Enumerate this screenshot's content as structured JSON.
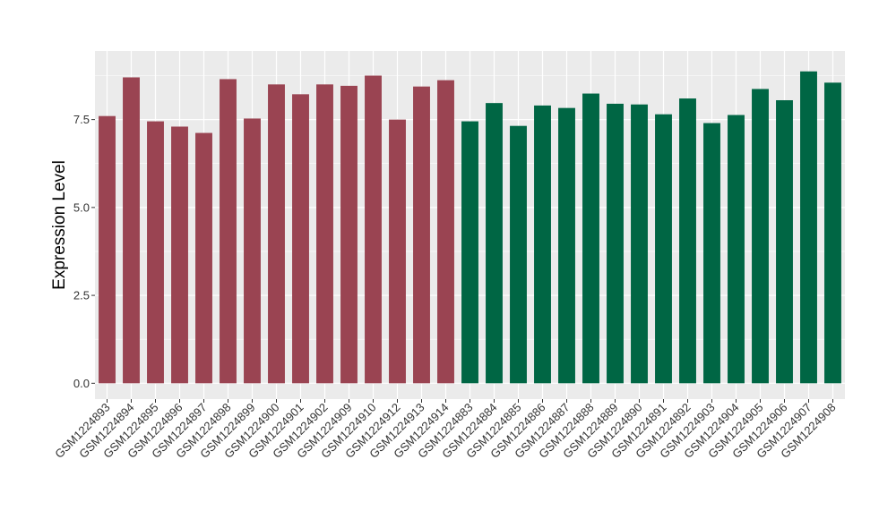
{
  "chart_data": {
    "type": "bar",
    "ylabel": "Expression Level",
    "xlabel": "",
    "ylim": [
      -0.45,
      9.45
    ],
    "yticks": [
      0.0,
      2.5,
      5.0,
      7.5
    ],
    "ytick_labels": [
      "0.0",
      "2.5",
      "5.0",
      "7.5"
    ],
    "grid": true,
    "legend": "none",
    "colors": {
      "group1": "#9a4452",
      "group2": "#006644",
      "panel": "#ebebeb",
      "grid": "#ffffff"
    },
    "categories": [
      "GSM1224893",
      "GSM1224894",
      "GSM1224895",
      "GSM1224896",
      "GSM1224897",
      "GSM1224898",
      "GSM1224899",
      "GSM1224900",
      "GSM1224901",
      "GSM1224902",
      "GSM1224909",
      "GSM1224910",
      "GSM1224912",
      "GSM1224913",
      "GSM1224914",
      "GSM1224883",
      "GSM1224884",
      "GSM1224885",
      "GSM1224886",
      "GSM1224887",
      "GSM1224888",
      "GSM1224889",
      "GSM1224890",
      "GSM1224891",
      "GSM1224892",
      "GSM1224903",
      "GSM1224904",
      "GSM1224905",
      "GSM1224906",
      "GSM1224907",
      "GSM1224908"
    ],
    "values": [
      7.6,
      8.7,
      7.45,
      7.3,
      7.12,
      8.65,
      7.53,
      8.5,
      8.22,
      8.5,
      8.46,
      8.75,
      7.5,
      8.44,
      8.62,
      7.45,
      7.97,
      7.32,
      7.9,
      7.83,
      8.24,
      7.95,
      7.93,
      7.65,
      8.1,
      7.4,
      7.63,
      8.37,
      8.05,
      8.87,
      8.55
    ],
    "group": [
      1,
      1,
      1,
      1,
      1,
      1,
      1,
      1,
      1,
      1,
      1,
      1,
      1,
      1,
      1,
      2,
      2,
      2,
      2,
      2,
      2,
      2,
      2,
      2,
      2,
      2,
      2,
      2,
      2,
      2,
      2
    ]
  }
}
